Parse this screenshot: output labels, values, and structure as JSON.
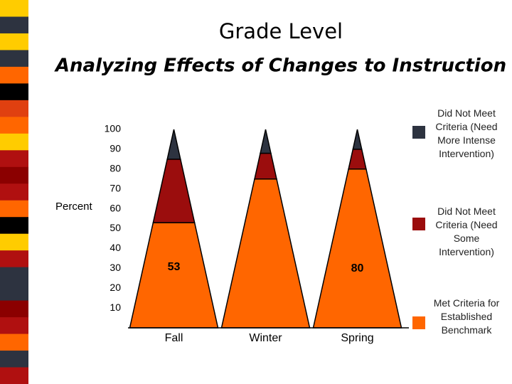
{
  "chart_data": {
    "type": "stacked_cone",
    "title": "Grade Level",
    "subtitle": "Analyzing Effects of Changes to Instruction",
    "y_label": "Percent",
    "categories": [
      "Fall",
      "Winter",
      "Spring"
    ],
    "series": [
      {
        "name": "Met Criteria for Established Benchmark",
        "color": "#ff6600",
        "values": [
          53,
          75,
          80
        ],
        "value_labels": [
          "53",
          null,
          "80"
        ]
      },
      {
        "name": "Did Not Meet Criteria (Need Some Intervention)",
        "color": "#9b0d0d",
        "values": [
          32,
          13,
          10
        ]
      },
      {
        "name": "Did Not Meet Criteria (Need More Intense Intervention)",
        "color": "#2d3340",
        "values": [
          15,
          12,
          10
        ]
      }
    ],
    "ylim": [
      0,
      100
    ],
    "yticks": [
      10,
      20,
      30,
      40,
      50,
      60,
      70,
      80,
      90,
      100
    ],
    "grid": false
  }
}
